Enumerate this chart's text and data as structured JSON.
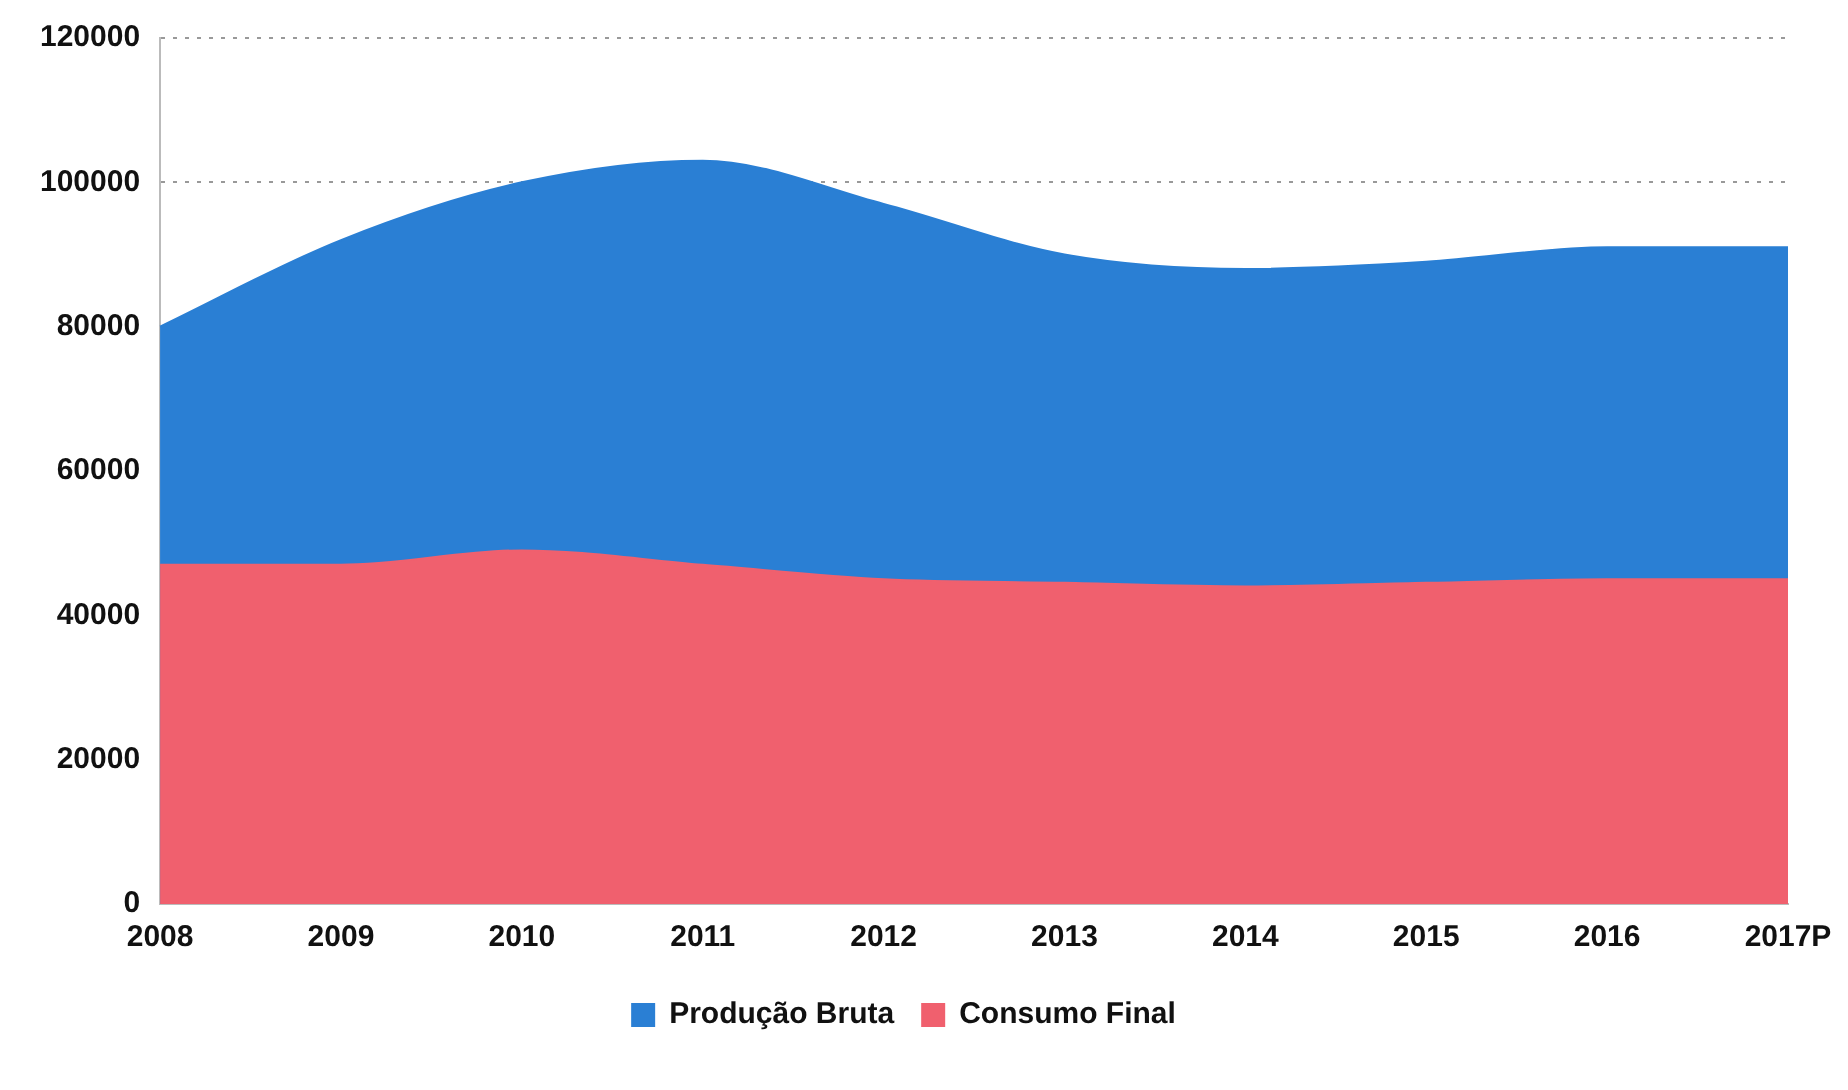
{
  "chart_data": {
    "type": "area",
    "categories": [
      "2008",
      "2009",
      "2010",
      "2011",
      "2012",
      "2013",
      "2014",
      "2015",
      "2016",
      "2017P"
    ],
    "series": [
      {
        "name": "Produção Bruta",
        "color": "#2a7fd4",
        "values": [
          80000,
          92000,
          100000,
          103000,
          97000,
          90000,
          88000,
          89000,
          91000,
          91000
        ]
      },
      {
        "name": "Consumo Final",
        "color": "#f0606e",
        "values": [
          47000,
          47000,
          49000,
          47000,
          45000,
          44500,
          44000,
          44500,
          45000,
          45000
        ]
      }
    ],
    "ylim": [
      0,
      120000
    ],
    "yticks": [
      0,
      20000,
      40000,
      60000,
      80000,
      100000,
      120000
    ],
    "grid": "y",
    "legend": "bottom"
  }
}
